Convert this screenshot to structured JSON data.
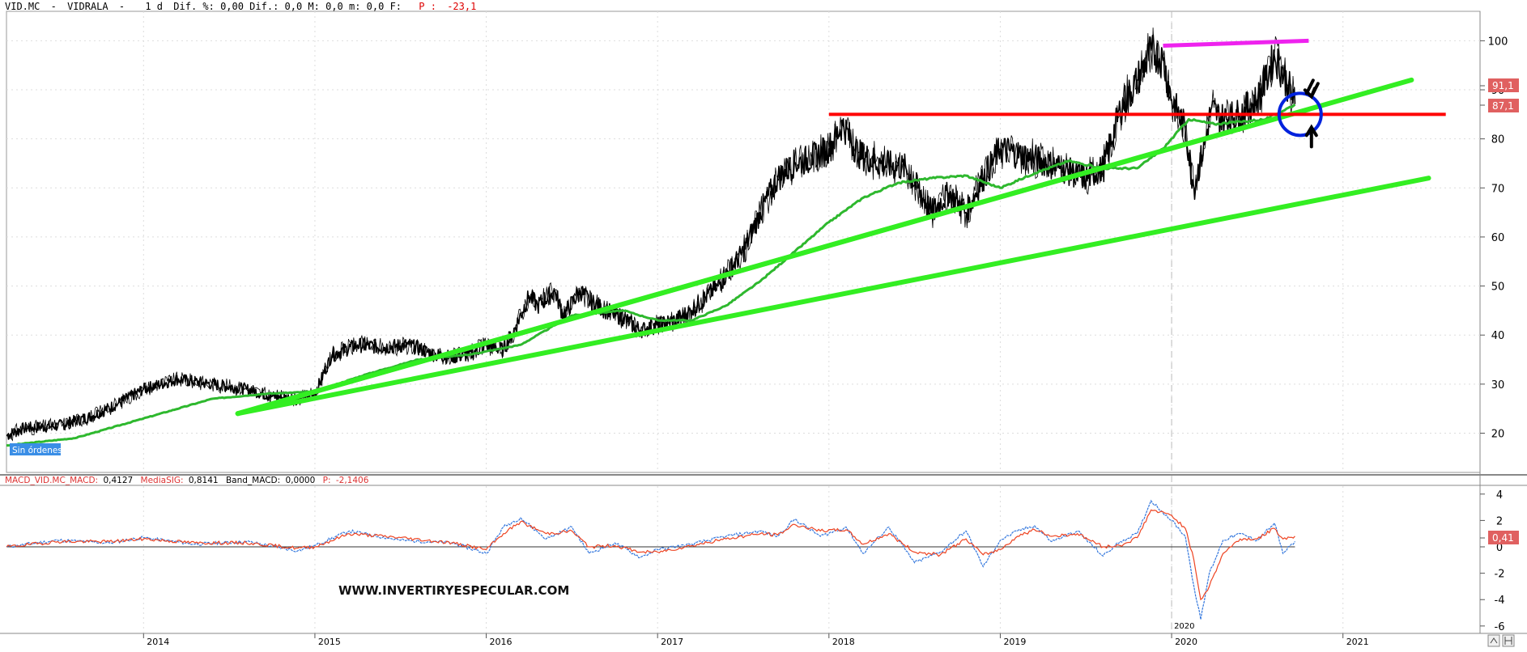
{
  "header": {
    "symbol": "VID.MC",
    "name": "VIDRALA",
    "sep1": "-",
    "sep2": "-",
    "period": "1 d",
    "fields": "Dif. %: 0,00 Dif.: 0,0 M: 0,0 m: 0,0 F:",
    "p_label": "P :",
    "p_value": "-23,1"
  },
  "badge": "Sin órdenes",
  "watermark": "WWW.INVERTIRYESPECULAR.COM",
  "macd_header": {
    "macd_label": "MACD_VID.MC_MACD:",
    "macd_value": "0,4127",
    "sig_label": "MediaSIG:",
    "sig_value": "0,8141",
    "band_label": "Band_MACD:",
    "band_value": "0,0000",
    "p_label": "P:",
    "p_value": "-2,1406"
  },
  "tags": {
    "price_high": "91,1",
    "price_close": "87,1",
    "macd_value": "0,41"
  },
  "colors": {
    "price": "#000000",
    "ma": "#2eb82e",
    "trend": "#33ee22",
    "resistance": "#ff0000",
    "top_line": "#ee22ee",
    "circle": "#0022dd",
    "macd": "#3377dd",
    "signal": "#ee4422",
    "tag_bg": "#e06060"
  },
  "chart_data": [
    {
      "type": "line",
      "panel": "price",
      "x_ticks": [
        "2014",
        "2015",
        "2016",
        "2017",
        "2018",
        "2019",
        "2020",
        "2021"
      ],
      "y_ticks": [
        20,
        30,
        40,
        50,
        60,
        70,
        80,
        90,
        100
      ],
      "ylim": [
        12,
        106
      ],
      "xlim": [
        2013.2,
        2021.8
      ],
      "grid": true,
      "series": [
        {
          "role": "price",
          "x": [
            2013.2,
            2013.3,
            2013.5,
            2013.7,
            2013.85,
            2014.0,
            2014.2,
            2014.4,
            2014.6,
            2014.75,
            2014.9,
            2015.0,
            2015.1,
            2015.25,
            2015.4,
            2015.55,
            2015.7,
            2015.8,
            2015.9,
            2016.0,
            2016.1,
            2016.15,
            2016.25,
            2016.3,
            2016.4,
            2016.45,
            2016.55,
            2016.6,
            2016.7,
            2016.8,
            2016.9,
            2017.0,
            2017.1,
            2017.2,
            2017.35,
            2017.5,
            2017.6,
            2017.7,
            2017.8,
            2017.9,
            2018.0,
            2018.08,
            2018.17,
            2018.3,
            2018.45,
            2018.6,
            2018.7,
            2018.8,
            2018.9,
            2019.0,
            2019.1,
            2019.2,
            2019.35,
            2019.5,
            2019.6,
            2019.7,
            2019.8,
            2019.88,
            2019.95,
            2020.0,
            2020.08,
            2020.13,
            2020.2,
            2020.23,
            2020.3,
            2020.4,
            2020.5,
            2020.55,
            2020.6,
            2020.68,
            2020.72
          ],
          "values": [
            19.5,
            21,
            21.5,
            23.5,
            26,
            29,
            31,
            30,
            29,
            27.5,
            27,
            28,
            36,
            38,
            37.5,
            38,
            36,
            35.5,
            36,
            38,
            37,
            40,
            48,
            46,
            49,
            44,
            49,
            47,
            45,
            43.5,
            41,
            42,
            43,
            45,
            50,
            57,
            65,
            72,
            75,
            76,
            78,
            83,
            77,
            75,
            74,
            65,
            69,
            65,
            72,
            78,
            77,
            76,
            74,
            72,
            74,
            86,
            92,
            98,
            96,
            88,
            82,
            70,
            80,
            86,
            84,
            85,
            88,
            92,
            97,
            91,
            87.1
          ]
        },
        {
          "role": "moving-average",
          "x": [
            2013.2,
            2013.6,
            2014.0,
            2014.4,
            2014.7,
            2015.0,
            2015.3,
            2015.6,
            2015.9,
            2016.2,
            2016.5,
            2016.8,
            2017.0,
            2017.2,
            2017.4,
            2017.6,
            2017.8,
            2018.0,
            2018.2,
            2018.4,
            2018.6,
            2018.8,
            2019.0,
            2019.2,
            2019.4,
            2019.6,
            2019.8,
            2019.95,
            2020.1,
            2020.25,
            2020.4,
            2020.55,
            2020.72
          ],
          "values": [
            17.5,
            19,
            23,
            27,
            28,
            28.5,
            32,
            35,
            36,
            38,
            44,
            45,
            43,
            43,
            46,
            51,
            57,
            63,
            68,
            71,
            72,
            72.5,
            70,
            73,
            75.5,
            74,
            74,
            78,
            84,
            83,
            83.5,
            84,
            87
          ]
        }
      ]
    },
    {
      "type": "line",
      "panel": "macd",
      "y_ticks": [
        4,
        2,
        0,
        -2,
        -4,
        -6
      ],
      "ylim": [
        -6.5,
        4.6
      ],
      "x_marker_label": "2020",
      "series": [
        {
          "role": "macd",
          "x": [
            2013.2,
            2013.5,
            2013.8,
            2014.0,
            2014.3,
            2014.6,
            2014.9,
            2015.0,
            2015.2,
            2015.5,
            2015.8,
            2016.0,
            2016.1,
            2016.2,
            2016.35,
            2016.5,
            2016.6,
            2016.75,
            2016.9,
            2017.0,
            2017.2,
            2017.4,
            2017.6,
            2017.7,
            2017.8,
            2017.95,
            2018.1,
            2018.2,
            2018.35,
            2018.5,
            2018.65,
            2018.8,
            2018.9,
            2019.0,
            2019.1,
            2019.2,
            2019.3,
            2019.45,
            2019.6,
            2019.7,
            2019.8,
            2019.88,
            2020.0,
            2020.08,
            2020.13,
            2020.17,
            2020.22,
            2020.3,
            2020.4,
            2020.5,
            2020.6,
            2020.65,
            2020.72
          ],
          "values": [
            0,
            0.5,
            0.3,
            0.7,
            0.2,
            0.4,
            -0.3,
            0.1,
            1.2,
            0.5,
            0.3,
            -0.5,
            1.5,
            2.2,
            0.6,
            1.5,
            -0.5,
            0.3,
            -0.8,
            -0.2,
            0.2,
            0.8,
            1.2,
            0.8,
            2.1,
            0.8,
            1.5,
            -0.5,
            1.5,
            -1.2,
            -0.4,
            1.2,
            -1.5,
            0.5,
            1.2,
            1.6,
            0.4,
            1.2,
            -0.7,
            0.4,
            1.0,
            3.5,
            2.0,
            0.8,
            -3.0,
            -5.5,
            -2.0,
            0.5,
            1.0,
            0.5,
            1.8,
            -0.5,
            0.41
          ]
        },
        {
          "role": "signal",
          "x": [
            2013.2,
            2013.5,
            2013.8,
            2014.0,
            2014.3,
            2014.6,
            2014.9,
            2015.0,
            2015.2,
            2015.5,
            2015.8,
            2016.0,
            2016.1,
            2016.2,
            2016.35,
            2016.5,
            2016.6,
            2016.75,
            2016.9,
            2017.0,
            2017.2,
            2017.4,
            2017.6,
            2017.7,
            2017.8,
            2017.95,
            2018.1,
            2018.2,
            2018.35,
            2018.5,
            2018.65,
            2018.8,
            2018.9,
            2019.0,
            2019.1,
            2019.2,
            2019.3,
            2019.45,
            2019.6,
            2019.7,
            2019.8,
            2019.88,
            2020.0,
            2020.08,
            2020.13,
            2020.17,
            2020.22,
            2020.3,
            2020.4,
            2020.5,
            2020.6,
            2020.65,
            2020.72
          ],
          "values": [
            0,
            0.4,
            0.4,
            0.6,
            0.3,
            0.3,
            -0.1,
            0,
            1.0,
            0.7,
            0.3,
            -0.2,
            1.0,
            1.9,
            1.0,
            1.2,
            0,
            0.1,
            -0.4,
            -0.4,
            0.1,
            0.6,
            1.0,
            0.9,
            1.7,
            1.2,
            1.3,
            0.2,
            1.0,
            -0.4,
            -0.6,
            0.6,
            -0.6,
            -0.2,
            0.8,
            1.3,
            0.8,
            1.0,
            0,
            0.1,
            0.7,
            2.8,
            2.4,
            1.4,
            -1.0,
            -4.0,
            -3.0,
            -0.5,
            0.6,
            0.6,
            1.4,
            0.6,
            0.81
          ]
        }
      ]
    }
  ],
  "annotations": {
    "trend_lines": [
      {
        "x": [
          2014.55,
          2020.8
        ],
        "y": [
          24,
          86
        ]
      },
      {
        "x": [
          2014.55,
          2021.4
        ],
        "y": [
          24,
          92
        ]
      },
      {
        "x": [
          2014.55,
          2021.5
        ],
        "y": [
          24,
          72
        ]
      }
    ],
    "resistance": {
      "y": 85,
      "x": [
        2018.0,
        2021.6
      ]
    },
    "top_line": {
      "x": [
        2019.95,
        2020.8
      ],
      "y": [
        99,
        100
      ]
    },
    "circle_center": {
      "x": 2020.75,
      "y": 85
    }
  }
}
